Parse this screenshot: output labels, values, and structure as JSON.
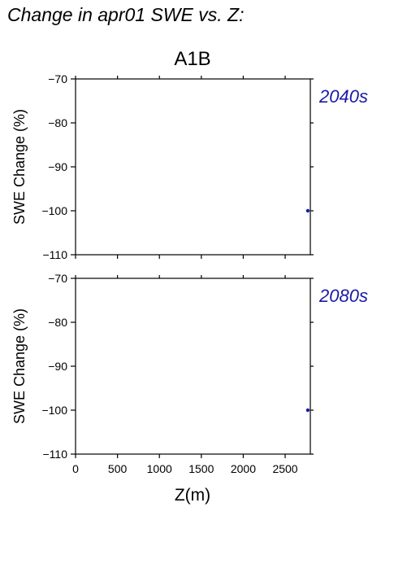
{
  "figure": {
    "heading": "Change in apr01 SWE vs. Z:",
    "scenario": "A1B",
    "xlabel": "Z(m)",
    "ylabel": "SWE Change (%)"
  },
  "colors": {
    "series": "#1a1aa6",
    "axis": "#000000",
    "background": "#ffffff"
  },
  "chart_data": [
    {
      "type": "scatter",
      "title": "2040s",
      "xlabel": "",
      "ylabel": "SWE Change (%)",
      "xlim": [
        0,
        2800
      ],
      "ylim": [
        -110,
        -70
      ],
      "xticks": [
        0,
        500,
        1000,
        1500,
        2000,
        2500
      ],
      "yticks": [
        -70,
        -80,
        -90,
        -100,
        -110
      ],
      "grid": false,
      "series": [
        {
          "points": [
            {
              "x": 2770,
              "y": -100
            }
          ]
        }
      ]
    },
    {
      "type": "scatter",
      "title": "2080s",
      "xlabel": "Z(m)",
      "ylabel": "SWE Change (%)",
      "xlim": [
        0,
        2800
      ],
      "ylim": [
        -110,
        -70
      ],
      "xticks": [
        0,
        500,
        1000,
        1500,
        2000,
        2500
      ],
      "yticks": [
        -70,
        -80,
        -90,
        -100,
        -110
      ],
      "grid": false,
      "series": [
        {
          "points": [
            {
              "x": 2770,
              "y": -100
            }
          ]
        }
      ]
    }
  ]
}
